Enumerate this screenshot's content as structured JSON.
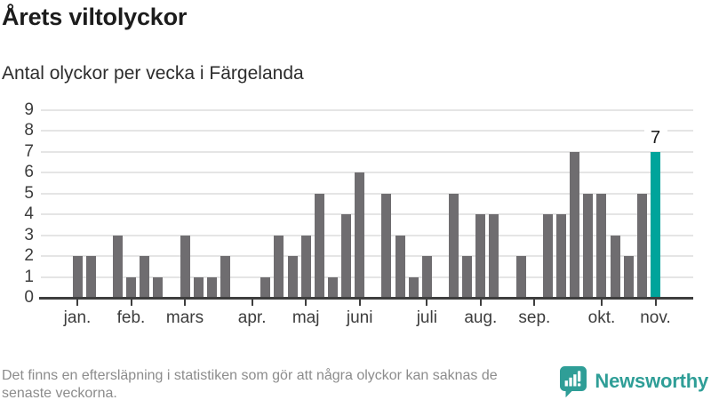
{
  "title": "Årets viltolyckor",
  "subtitle": "Antal olyckor per vecka i Färgelanda",
  "footer": {
    "note": "Det finns en eftersläpning i statistiken som gör att några olyckor kan saknas de senaste veckorna."
  },
  "branding": {
    "name": "Newsworthy",
    "icon": "bar-chart-speech-bubble-icon",
    "color": "#2f9e97"
  },
  "colors": {
    "bar": "#6f6d70",
    "highlight": "#00a49b",
    "gridline": "#e5e5e5",
    "axis": "#3e3e3e",
    "axis_text": "#3d3d3d",
    "annotation_text": "#1b1b1b",
    "footer_text": "#8c8c8c"
  },
  "chart_data": {
    "type": "bar",
    "title": "Årets viltolyckor",
    "subtitle": "Antal olyckor per vecka i Färgelanda",
    "x_unit": "vecka",
    "values": [
      2,
      2,
      0,
      3,
      1,
      2,
      1,
      0,
      3,
      1,
      1,
      2,
      0,
      0,
      1,
      3,
      2,
      3,
      5,
      1,
      4,
      6,
      0,
      5,
      3,
      1,
      2,
      0,
      5,
      2,
      4,
      4,
      0,
      2,
      0,
      4,
      4,
      7,
      5,
      5,
      3,
      2,
      5,
      7
    ],
    "weeks_per_month": {
      "jan.": [
        2,
        2,
        0,
        3
      ],
      "feb.": [
        1,
        2,
        1,
        0
      ],
      "mars": [
        3,
        1,
        1,
        2,
        0
      ],
      "apr.": [
        0,
        1,
        3,
        2
      ],
      "maj": [
        3,
        5,
        1,
        4
      ],
      "juni": [
        6,
        0,
        5,
        3,
        1
      ],
      "juli": [
        2,
        0,
        5,
        2
      ],
      "aug.": [
        4,
        4,
        0,
        2
      ],
      "sep.": [
        0,
        4,
        4,
        7,
        5
      ],
      "okt.": [
        5,
        3,
        2,
        5
      ],
      "nov.": [
        7
      ]
    },
    "x_ticks": [
      {
        "label": "jan.",
        "week_index": 0
      },
      {
        "label": "feb.",
        "week_index": 4
      },
      {
        "label": "mars",
        "week_index": 8
      },
      {
        "label": "apr.",
        "week_index": 13
      },
      {
        "label": "maj",
        "week_index": 17
      },
      {
        "label": "juni",
        "week_index": 21
      },
      {
        "label": "juli",
        "week_index": 26
      },
      {
        "label": "aug.",
        "week_index": 30
      },
      {
        "label": "sep.",
        "week_index": 34
      },
      {
        "label": "okt.",
        "week_index": 39
      },
      {
        "label": "nov.",
        "week_index": 43
      }
    ],
    "y_ticks": [
      0,
      1,
      2,
      3,
      4,
      5,
      6,
      7,
      8,
      9
    ],
    "ylim": [
      0,
      9
    ],
    "grid": "horizontal",
    "highlight_last_bar": true,
    "last_value_label": "7",
    "legend": "none"
  }
}
